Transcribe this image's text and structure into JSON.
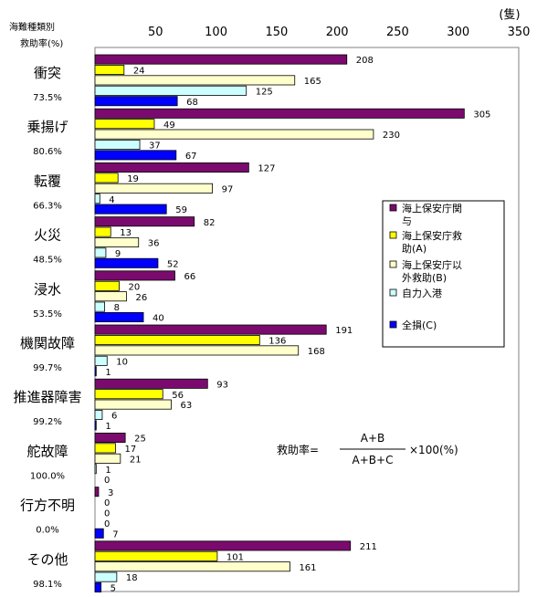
{
  "chart_data": {
    "type": "bar",
    "orientation": "horizontal",
    "header_line1": "海難種類別",
    "header_line2": "救助率(%)",
    "unit": "(隻)",
    "xlim": [
      0,
      350
    ],
    "ticks": [
      50,
      100,
      150,
      200,
      250,
      300,
      350
    ],
    "grid": false,
    "categories": [
      "衝突",
      "乗揚げ",
      "転覆",
      "火災",
      "浸水",
      "機関故障",
      "推進器障害",
      "舵故障",
      "行方不明",
      "その他"
    ],
    "rates": [
      "73.5%",
      "80.6%",
      "66.3%",
      "48.5%",
      "53.5%",
      "99.7%",
      "99.2%",
      "100.0%",
      "0.0%",
      "98.1%"
    ],
    "series": [
      {
        "name": "海上保安庁関与",
        "color": "#7b0a6e",
        "values": [
          208,
          305,
          127,
          82,
          66,
          191,
          93,
          25,
          3,
          211
        ]
      },
      {
        "name": "海上保安庁救助(A)",
        "color": "#ffff00",
        "values": [
          24,
          49,
          19,
          13,
          20,
          136,
          56,
          17,
          0,
          101
        ]
      },
      {
        "name": "海上保安庁以外救助(B)",
        "color": "#ffffcc",
        "values": [
          165,
          230,
          97,
          36,
          26,
          168,
          63,
          21,
          0,
          161
        ]
      },
      {
        "name": "自力入港",
        "color": "#ccffff",
        "values": [
          125,
          37,
          4,
          9,
          8,
          10,
          6,
          1,
          0,
          18
        ]
      },
      {
        "name": "全損(C)",
        "color": "#0000ff",
        "values": [
          68,
          67,
          59,
          52,
          40,
          1,
          1,
          0,
          7,
          5
        ]
      }
    ],
    "legend": {
      "placement": "right",
      "entries": [
        "海上保安庁関\n与",
        "海上保安庁救\n助(A)",
        "海上保安庁以\n外救助(B)",
        "自力入港",
        "全損(C)"
      ]
    },
    "formula": {
      "lhs": "救助率=",
      "numerator": "A+B",
      "denominator": "A+B+C",
      "rhs": "×100(%)"
    }
  }
}
